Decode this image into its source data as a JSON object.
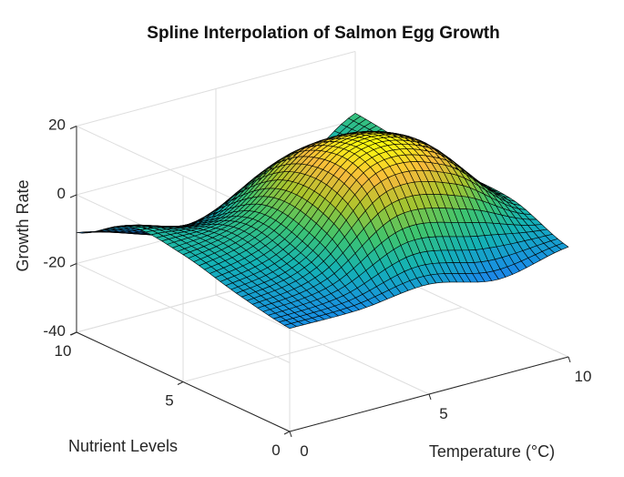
{
  "chart_data": {
    "type": "surface",
    "title": "Spline Interpolation of Salmon Egg Growth",
    "xlabel": "Temperature (°C)",
    "ylabel": "Nutrient Levels",
    "zlabel": "Growth Rate",
    "xlim": [
      0,
      10
    ],
    "ylim": [
      0,
      10
    ],
    "zlim": [
      -40,
      20
    ],
    "xticks": [
      0,
      5,
      10
    ],
    "yticks": [
      0,
      5,
      10
    ],
    "zticks": [
      -40,
      -20,
      0,
      20
    ],
    "xtick_labels": [
      "0",
      "5",
      "10"
    ],
    "ytick_labels": [
      "0",
      "5",
      "10"
    ],
    "ztick_labels": [
      "-40",
      "-20",
      "0",
      "20"
    ],
    "grid": true,
    "colormap": "parula",
    "colors": {
      "low": "#3d26a8",
      "mid": "#24b5a2",
      "high": "#f9fb0e",
      "edge": "#000000"
    },
    "x": [
      0,
      2.5,
      5,
      7.5,
      10
    ],
    "y": [
      0,
      2.5,
      5,
      7.5,
      10
    ],
    "z": [
      [
        -10,
        -7,
        -3,
        -2,
        -11
      ],
      [
        -10,
        -2,
        2,
        -6,
        -17
      ],
      [
        -8,
        17,
        18,
        4,
        -24
      ],
      [
        -12,
        14,
        16,
        1,
        -13
      ],
      [
        -8,
        -2,
        -1,
        0,
        2
      ]
    ]
  }
}
